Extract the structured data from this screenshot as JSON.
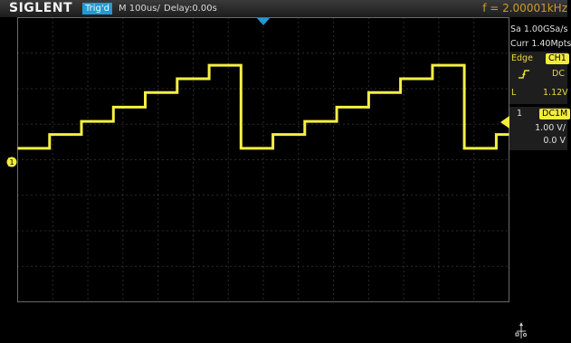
{
  "header": {
    "brand": "SIGLENT",
    "trigger_status": "Trig'd",
    "timebase": "M 100us/",
    "delay": "Delay:0.00s",
    "frequency": "f = 2.00001kHz"
  },
  "side_panel": {
    "acquisition": {
      "sample_rate": "Sa 1.00GSa/s",
      "memory_depth": "Curr 1.40Mpts"
    },
    "trigger": {
      "type": "Edge",
      "source": "CH1",
      "slope_icon": "rising-edge-icon",
      "coupling": "DC",
      "level_label": "L",
      "level": "1.12V"
    },
    "channel": {
      "number": "1",
      "coupling": "DC1M",
      "scale": "1.00 V/",
      "offset": "0.0 V"
    }
  },
  "channel_marker": "1",
  "colors": {
    "trace": "#f4f042",
    "trigger_accent": "#1f9bd7",
    "frequency_text": "#d09a2a",
    "grid": "#5a5a5a"
  },
  "icons": [
    "trigger-position-icon",
    "channel-1-ground-marker-icon",
    "trigger-level-marker-icon",
    "rising-edge-icon",
    "usb-icon"
  ],
  "waveform": {
    "type": "staircase-sawtooth",
    "frequency_khz": 2.00001,
    "steps_per_period": 7,
    "periods_visible": 2.2,
    "levels_v": [
      0.32,
      0.71,
      1.08,
      1.48,
      1.89,
      2.28,
      2.66
    ]
  }
}
